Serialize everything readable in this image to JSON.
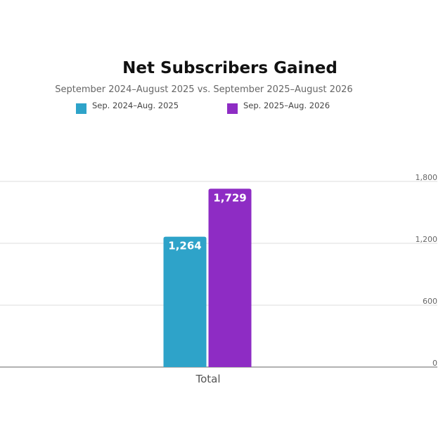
{
  "chart_data": {
    "type": "bar",
    "title": "Net Subscribers Gained",
    "subtitle": "September 2024–August 2025 vs. September 2025–August 2026",
    "categories": [
      "Total"
    ],
    "series": [
      {
        "name": "Sep. 2024–Aug. 2025",
        "values": [
          1264
        ],
        "value_labels": [
          "1,264"
        ],
        "color": "#2ea3c9"
      },
      {
        "name": "Sep. 2025–Aug. 2026",
        "values": [
          1729
        ],
        "value_labels": [
          "1,729"
        ],
        "color": "#8e2cc4"
      }
    ],
    "y_ticks": [
      0,
      600,
      1200,
      1800
    ],
    "y_tick_labels": [
      "0",
      "600",
      "1,200",
      "1,800"
    ],
    "ylim": [
      0,
      1800
    ],
    "y_axis_side": "right",
    "grid": true,
    "legend_position": "top-left",
    "xlabel": "",
    "ylabel": ""
  }
}
